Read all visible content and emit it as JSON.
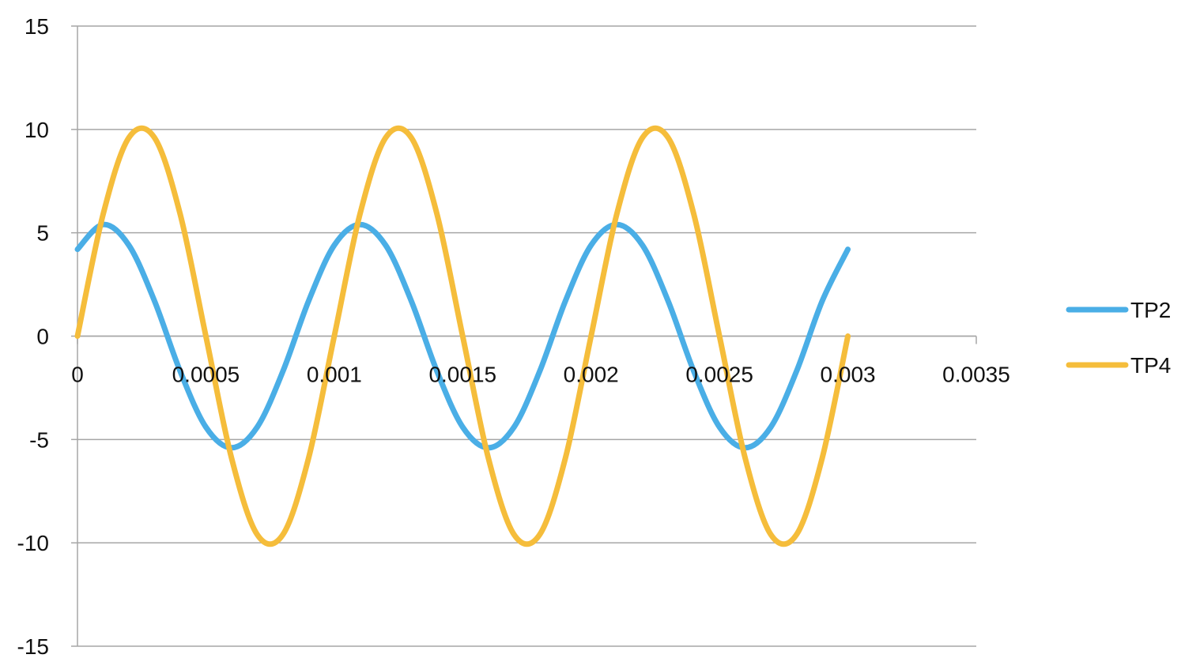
{
  "chart_data": {
    "type": "line",
    "xlabel": "",
    "ylabel": "",
    "xlim": [
      0,
      0.0035
    ],
    "ylim": [
      -15,
      15
    ],
    "x_ticks": [
      "0",
      "0.0005",
      "0.001",
      "0.0015",
      "0.002",
      "0.0025",
      "0.003",
      "0.0035"
    ],
    "y_ticks": [
      "15",
      "10",
      "5",
      "0",
      "-5",
      "-10",
      "-15"
    ],
    "grid": "horizontal",
    "legend_position": "right",
    "series": [
      {
        "name": "TP2",
        "color": "#4aaee6",
        "x": [
          0,
          0.0001,
          0.0002,
          0.0003,
          0.0004,
          0.0005,
          0.0006,
          0.0007,
          0.0008,
          0.0009,
          0.001,
          0.0011,
          0.0012,
          0.0013,
          0.0014,
          0.0015,
          0.0016,
          0.0017,
          0.0018,
          0.0019,
          0.002,
          0.0021,
          0.0022,
          0.0023,
          0.0024,
          0.0025,
          0.0026,
          0.0027,
          0.0028,
          0.0029,
          0.003
        ],
        "values": [
          4.2,
          5.4,
          4.4,
          1.7,
          -1.7,
          -4.4,
          -5.4,
          -4.4,
          -1.7,
          1.7,
          4.4,
          5.4,
          4.4,
          1.7,
          -1.7,
          -4.4,
          -5.4,
          -4.4,
          -1.7,
          1.7,
          4.4,
          5.4,
          4.4,
          1.7,
          -1.7,
          -4.4,
          -5.4,
          -4.4,
          -1.7,
          1.7,
          4.2
        ]
      },
      {
        "name": "TP4",
        "color": "#f5bd3b",
        "x": [
          0,
          0.0001,
          0.0002,
          0.0003,
          0.0004,
          0.0005,
          0.0006,
          0.0007,
          0.0008,
          0.0009,
          0.001,
          0.0011,
          0.0012,
          0.0013,
          0.0014,
          0.0015,
          0.0016,
          0.0017,
          0.0018,
          0.0019,
          0.002,
          0.0021,
          0.0022,
          0.0023,
          0.0024,
          0.0025,
          0.0026,
          0.0027,
          0.0028,
          0.0029,
          0.003
        ],
        "values": [
          0,
          5.9,
          9.6,
          9.6,
          5.9,
          0,
          -5.9,
          -9.6,
          -9.6,
          -5.9,
          0,
          5.9,
          9.6,
          9.6,
          5.9,
          0,
          -5.9,
          -9.6,
          -9.6,
          -5.9,
          0,
          5.9,
          9.6,
          9.6,
          5.9,
          0,
          -5.9,
          -9.6,
          -9.6,
          -5.9,
          0
        ]
      }
    ]
  }
}
